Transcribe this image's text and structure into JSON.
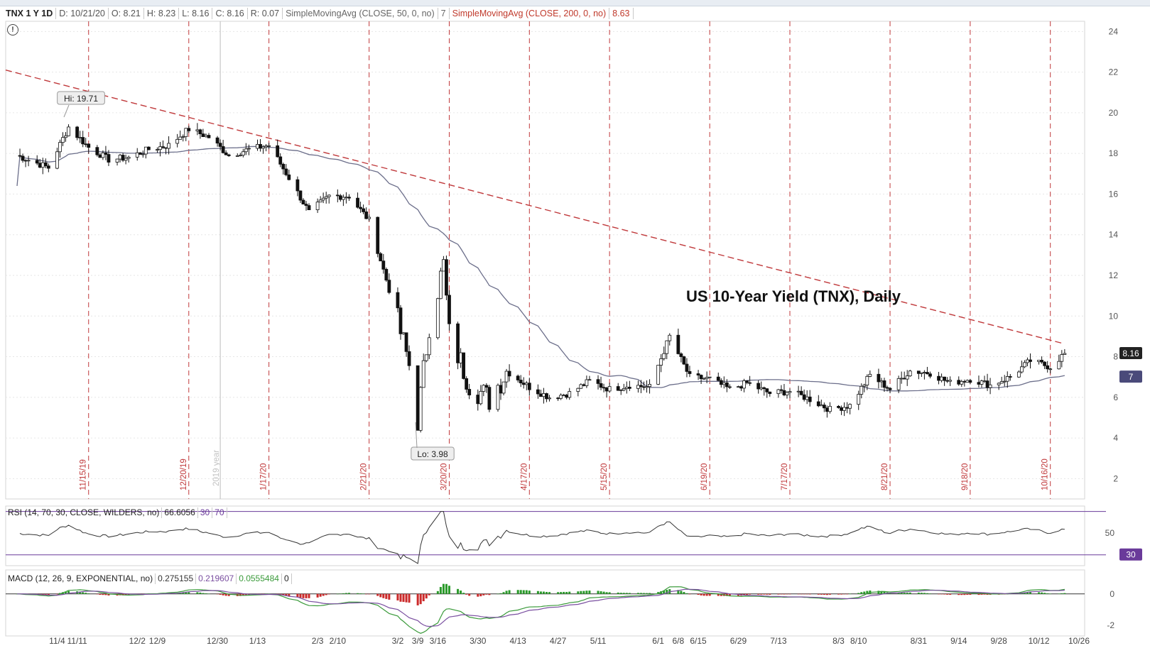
{
  "header": {
    "symbol": "TNX 1 Y 1D",
    "date": "D: 10/21/20",
    "open": "O: 8.21",
    "high": "H: 8.23",
    "low": "L: 8.16",
    "close": "C: 8.16",
    "range": "R: 0.07",
    "ma50_label": "SimpleMovingAvg (CLOSE, 50, 0, no)",
    "ma50_value": "7",
    "ma200_label": "SimpleMovingAvg (CLOSE, 200, 0, no)",
    "ma200_value": "8.63"
  },
  "colors": {
    "ma200": "#c0393b",
    "ma50": "#6b6e8a",
    "rsi": "#333333",
    "macd": "#7a4fa0",
    "macd_signal": "#3a9a3a",
    "hist_up": "#2a9a2a",
    "hist_down": "#cc2a2a",
    "vline": "#c0393b",
    "badge_price": "#222222",
    "badge_ma50": "#4a4a7a",
    "badge_rsi": "#6a3a9a"
  },
  "chart_title": "US 10-Year Yield (TNX), Daily",
  "annotations": {
    "hi": "Hi: 19.71",
    "lo": "Lo: 3.98",
    "year": "2019 year"
  },
  "badges": {
    "price": "8.16",
    "ma50": "7",
    "rsi": "30"
  },
  "rsi_panel": {
    "label": "RSI (14, 70, 30, CLOSE, WILDERS, no)",
    "value": "66.6056",
    "over_sold": "30",
    "over_bought": "70",
    "ticks": [
      "50"
    ]
  },
  "macd_panel": {
    "label": "MACD (12, 26, 9, EXPONENTIAL, no)",
    "value": "0.275155",
    "avg": "0.219607",
    "diff": "0.0555484",
    "zero": "0",
    "ticks": [
      "0",
      "-2"
    ]
  },
  "chart_data": {
    "type": "candlestick",
    "title": "US 10-Year Yield (TNX), Daily",
    "y_ticks": [
      2,
      4,
      6,
      8,
      10,
      12,
      14,
      16,
      18,
      20,
      22,
      24
    ],
    "ylim": [
      1,
      24.5
    ],
    "x_labels": [
      "11/4",
      "11/11",
      "12/2",
      "12/9",
      "12/30",
      "1/13",
      "2/3",
      "2/10",
      "3/2",
      "3/9",
      "3/16",
      "3/30",
      "4/13",
      "4/27",
      "5/11",
      "6/1",
      "6/8",
      "6/15",
      "6/29",
      "7/13",
      "8/3",
      "8/10",
      "8/31",
      "9/14",
      "9/28",
      "10/12",
      "10/26"
    ],
    "event_lines": [
      "11/15/19",
      "12/20/19",
      "1/17/20",
      "2/21/20",
      "3/20/20",
      "4/17/20",
      "5/15/20",
      "6/19/20",
      "7/17/20",
      "8/21/20",
      "9/18/20",
      "10/16/20"
    ],
    "price_points": [
      [
        "10/21/19",
        17.9
      ],
      [
        "11/1/19",
        17.3
      ],
      [
        "11/8/19",
        19.3
      ],
      [
        "11/15/19",
        18.3
      ],
      [
        "11/22/19",
        17.7
      ],
      [
        "11/29/19",
        17.8
      ],
      [
        "12/6/19",
        18.2
      ],
      [
        "12/13/19",
        18.4
      ],
      [
        "12/20/19",
        19.2
      ],
      [
        "12/27/19",
        18.8
      ],
      [
        "1/3/20",
        17.9
      ],
      [
        "1/10/20",
        18.2
      ],
      [
        "1/17/20",
        18.4
      ],
      [
        "1/24/20",
        16.8
      ],
      [
        "1/31/20",
        15.1
      ],
      [
        "2/7/20",
        15.9
      ],
      [
        "2/14/20",
        15.9
      ],
      [
        "2/21/20",
        14.7
      ],
      [
        "2/28/20",
        11.3
      ],
      [
        "3/6/20",
        7.6
      ],
      [
        "3/9/20",
        4.9
      ],
      [
        "3/13/20",
        9.6
      ],
      [
        "3/18/20",
        12.5
      ],
      [
        "3/20/20",
        9.1
      ],
      [
        "3/27/20",
        6.7
      ],
      [
        "4/3/20",
        5.9
      ],
      [
        "4/9/20",
        7.3
      ],
      [
        "4/17/20",
        6.5
      ],
      [
        "4/24/20",
        6.0
      ],
      [
        "5/1/20",
        6.2
      ],
      [
        "5/8/20",
        6.8
      ],
      [
        "5/15/20",
        6.4
      ],
      [
        "5/22/20",
        6.6
      ],
      [
        "5/29/20",
        6.5
      ],
      [
        "6/5/20",
        9.0
      ],
      [
        "6/12/20",
        7.0
      ],
      [
        "6/19/20",
        6.9
      ],
      [
        "6/26/20",
        6.4
      ],
      [
        "7/2/20",
        6.7
      ],
      [
        "7/10/20",
        6.2
      ],
      [
        "7/17/20",
        6.3
      ],
      [
        "7/24/20",
        5.9
      ],
      [
        "7/31/20",
        5.4
      ],
      [
        "8/7/20",
        5.6
      ],
      [
        "8/14/20",
        7.1
      ],
      [
        "8/21/20",
        6.4
      ],
      [
        "8/28/20",
        7.3
      ],
      [
        "9/4/20",
        7.2
      ],
      [
        "9/11/20",
        6.7
      ],
      [
        "9/18/20",
        6.9
      ],
      [
        "9/25/20",
        6.6
      ],
      [
        "10/2/20",
        7.0
      ],
      [
        "10/9/20",
        7.8
      ],
      [
        "10/16/20",
        7.5
      ],
      [
        "10/21/20",
        8.16
      ]
    ]
  }
}
